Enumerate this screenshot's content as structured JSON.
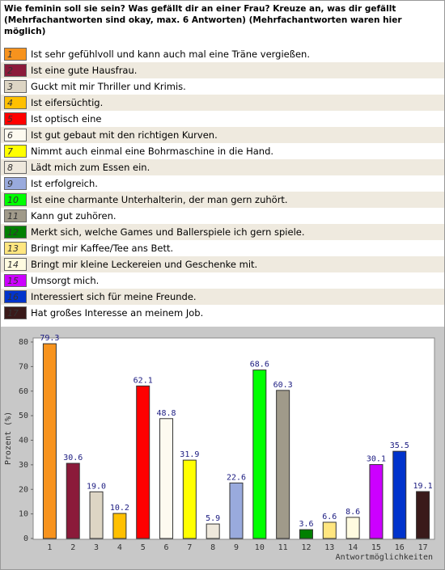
{
  "chart_data": {
    "type": "bar",
    "title": "Wie feminin soll sie sein? Was gefällt dir an einer Frau? Kreuze an, was dir gefällt (Mehrfachantworten sind okay, max. 6 Antworten) (Mehrfachantworten waren hier möglich)",
    "categories": [
      "1",
      "2",
      "3",
      "4",
      "5",
      "6",
      "7",
      "8",
      "9",
      "10",
      "11",
      "12",
      "13",
      "14",
      "15",
      "16",
      "17"
    ],
    "labels": [
      "Ist sehr gefühlvoll und kann auch mal eine Träne vergießen.",
      "Ist eine gute Hausfrau.",
      "Guckt mit mir Thriller und Krimis.",
      "Ist eifersüchtig.",
      "Ist optisch eine",
      "Ist gut gebaut mit den richtigen Kurven.",
      "Nimmt auch einmal eine Bohrmaschine in die Hand.",
      "Lädt mich zum Essen ein.",
      "Ist erfolgreich.",
      "Ist eine charmante Unterhalterin, der man gern zuhört.",
      "Kann gut zuhören.",
      "Merkt sich, welche Games und Ballerspiele ich gern spiele.",
      "Bringt mir Kaffee/Tee ans Bett.",
      "Bringt mir kleine Leckereien und Geschenke mit.",
      "Umsorgt mich.",
      "Interessiert sich für meine Freunde.",
      "Hat großes Interesse an meinem Job."
    ],
    "values": [
      79.3,
      30.6,
      19.0,
      10.2,
      62.1,
      48.8,
      31.9,
      5.9,
      22.6,
      68.6,
      60.3,
      3.6,
      6.6,
      8.6,
      30.1,
      35.5,
      19.1
    ],
    "value_labels": [
      "79.3",
      "30.6",
      "19.0",
      "10.2",
      "62.1",
      "48.8",
      "31.9",
      "5.9",
      "22.6",
      "68.6",
      "60.3",
      "3.6",
      "6.6",
      "8.6",
      "30.1",
      "35.5",
      "19.1"
    ],
    "colors": [
      "#f7931e",
      "#8b1a3a",
      "#ddd5c4",
      "#ffc000",
      "#ff0000",
      "#fdfaf0",
      "#ffff00",
      "#eee8dc",
      "#99aadd",
      "#00ff00",
      "#a09a8a",
      "#008000",
      "#ffe680",
      "#fffbe0",
      "#cc00ff",
      "#0033cc",
      "#3a1a1a"
    ],
    "y_label": "Prozent (%)",
    "x_label": "Antwortmöglichkeiten",
    "ylim": [
      0,
      80
    ],
    "yticks": [
      0,
      10,
      20,
      30,
      40,
      50,
      60,
      70,
      80
    ],
    "grid": false
  }
}
